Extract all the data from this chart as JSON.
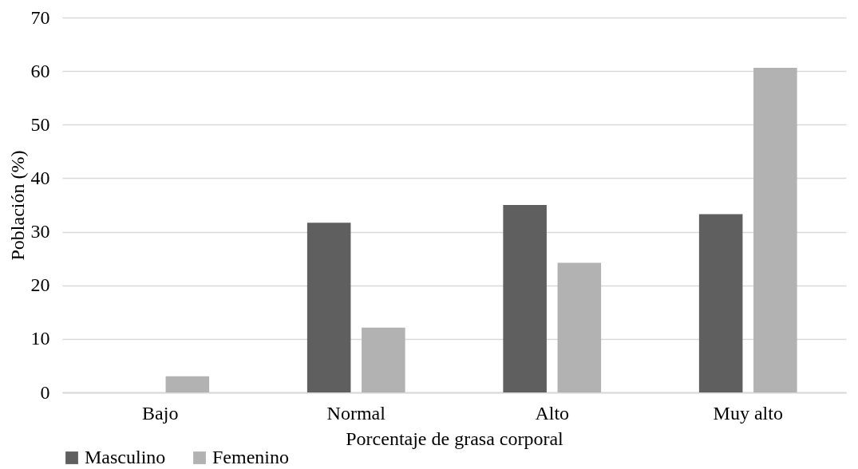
{
  "chart_data": {
    "type": "bar",
    "xlabel": "Porcentaje de grasa corporal",
    "ylabel": "Población (%)",
    "categories": [
      "Bajo",
      "Normal",
      "Alto",
      "Muy alto"
    ],
    "series": [
      {
        "name": "Masculino",
        "color": "#5f5f5f",
        "values": [
          0,
          31.7,
          35,
          33.3
        ]
      },
      {
        "name": "Femenino",
        "color": "#b2b2b2",
        "values": [
          3,
          12.1,
          24.2,
          60.6
        ]
      }
    ],
    "ylim": [
      0,
      70
    ],
    "yticks": [
      0,
      10,
      20,
      30,
      40,
      50,
      60,
      70
    ],
    "grid": "y",
    "legend": "bottom"
  }
}
